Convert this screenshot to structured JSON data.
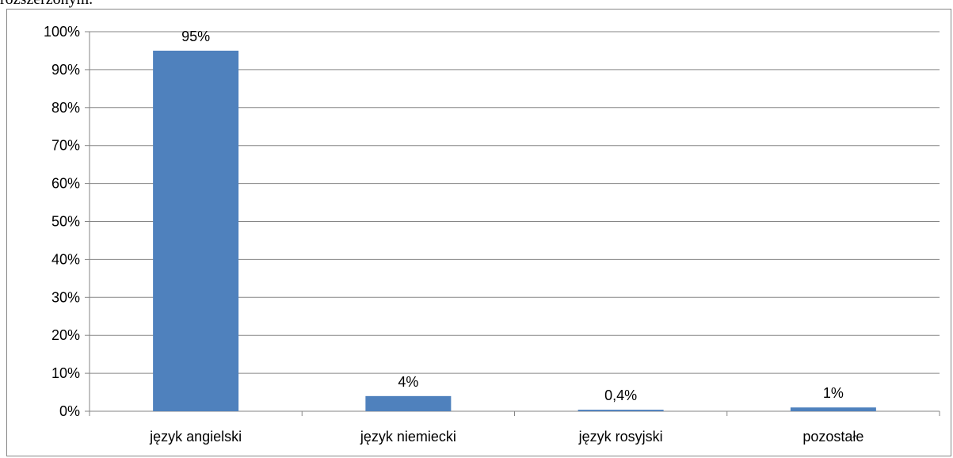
{
  "page": {
    "top_text": "rozszerzonym."
  },
  "chart_data": {
    "type": "bar",
    "categories": [
      "język angielski",
      "język niemiecki",
      "język rosyjski",
      "pozostałe"
    ],
    "values": [
      95,
      4,
      0.4,
      1
    ],
    "data_labels": [
      "95%",
      "4%",
      "0,4%",
      "1%"
    ],
    "y_ticks": [
      "0%",
      "10%",
      "20%",
      "30%",
      "40%",
      "50%",
      "60%",
      "70%",
      "80%",
      "90%",
      "100%"
    ],
    "ylim": [
      0,
      100
    ],
    "grid": true,
    "legend": "none",
    "title": "",
    "xlabel": "",
    "ylabel": "",
    "colors": {
      "bar": "#4f81bd",
      "grid": "#868686",
      "axis": "#868686",
      "frame": "#868686"
    }
  }
}
